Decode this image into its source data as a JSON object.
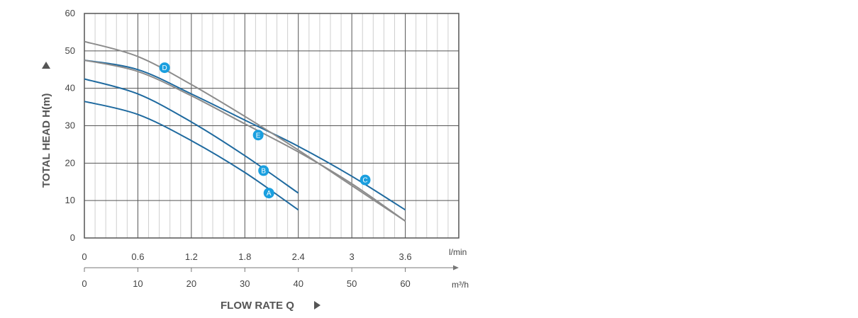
{
  "chart_data": {
    "type": "line",
    "ylabel": "TOTAL HEAD H(m)",
    "xlabel": "FLOW RATE Q",
    "ylim": [
      0,
      60
    ],
    "yticks": [
      "0",
      "10",
      "20",
      "30",
      "40",
      "50",
      "60"
    ],
    "x_top_unit": "l/min",
    "x_bottom_unit": "m³/h",
    "x_top_ticks": [
      "0",
      "0.6",
      "1.2",
      "1.8",
      "2.4",
      "3",
      "3.6"
    ],
    "x_bottom_ticks": [
      "0",
      "10",
      "20",
      "30",
      "40",
      "50",
      "60"
    ],
    "xlim": [
      0,
      70
    ],
    "grid": true,
    "colors": {
      "blue": "#1f6a9f",
      "gray": "#8c8c8c",
      "marker": "#1a9fdf",
      "grid": "#555555",
      "minor_grid": "#cfcfcf"
    },
    "series": [
      {
        "name": "A",
        "color": "blue",
        "label_at": [
          34.5,
          12.0
        ],
        "points": [
          [
            0,
            36.5
          ],
          [
            10,
            33
          ],
          [
            20,
            26
          ],
          [
            30,
            17.5
          ],
          [
            40,
            7.5
          ]
        ]
      },
      {
        "name": "B",
        "color": "blue",
        "label_at": [
          33.5,
          18.0
        ],
        "points": [
          [
            0,
            42.5
          ],
          [
            10,
            38.5
          ],
          [
            20,
            31
          ],
          [
            30,
            22
          ],
          [
            40,
            12
          ]
        ]
      },
      {
        "name": "C",
        "color": "blue",
        "label_at": [
          52.5,
          15.5
        ],
        "points": [
          [
            0,
            47.5
          ],
          [
            10,
            45
          ],
          [
            20,
            38.5
          ],
          [
            30,
            31.5
          ],
          [
            40,
            24.5
          ],
          [
            50,
            16.5
          ],
          [
            60,
            7.5
          ]
        ]
      },
      {
        "name": "D",
        "color": "gray",
        "label_at": [
          15.0,
          45.5
        ],
        "points": [
          [
            0,
            52.5
          ],
          [
            10,
            48.5
          ],
          [
            20,
            41
          ],
          [
            30,
            32.5
          ],
          [
            40,
            23.5
          ],
          [
            50,
            14
          ],
          [
            60,
            4.5
          ]
        ]
      },
      {
        "name": "E",
        "color": "gray",
        "label_at": [
          32.5,
          27.5
        ],
        "points": [
          [
            0,
            47.5
          ],
          [
            10,
            44.5
          ],
          [
            20,
            38
          ],
          [
            30,
            30.5
          ],
          [
            40,
            23
          ],
          [
            50,
            14.5
          ],
          [
            60,
            4.5
          ]
        ]
      }
    ]
  }
}
